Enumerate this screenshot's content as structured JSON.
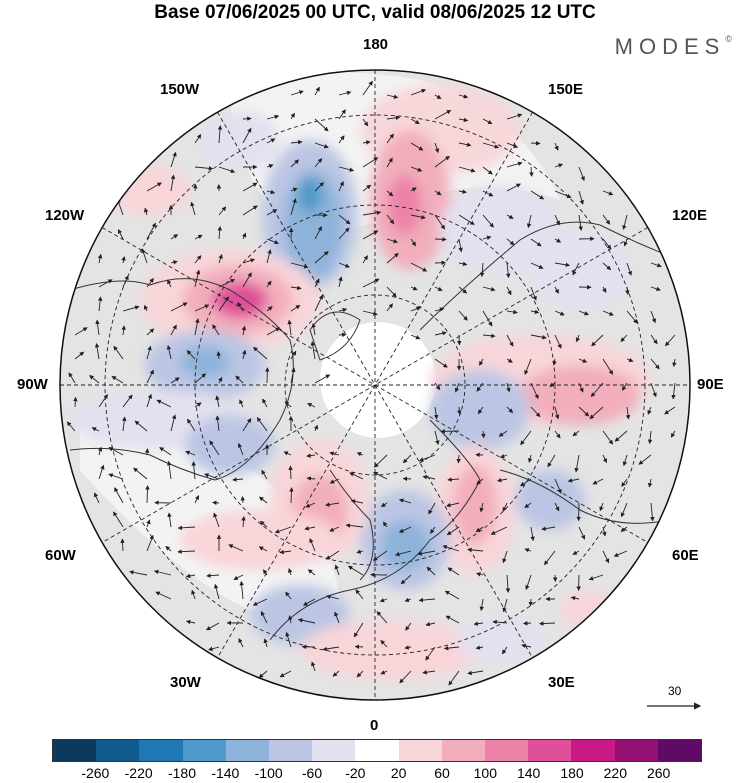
{
  "header": {
    "title": "Base 07/06/2025 00 UTC, valid 08/06/2025 12 UTC",
    "brand": "MODES",
    "brand_mark": "©"
  },
  "map": {
    "projection": "north-polar-stereographic",
    "longitude_labels": {
      "top": "180",
      "bottom": "0",
      "left": "90W",
      "right": "90E",
      "upper_left_1": "150W",
      "upper_left_2": "120W",
      "lower_left_1": "60W",
      "lower_left_2": "30W",
      "upper_right_1": "150E",
      "upper_right_2": "120E",
      "lower_right_1": "60E",
      "lower_right_2": "30E"
    },
    "reference_vector": "30"
  },
  "colorbar": {
    "colors": [
      "#0b3a5c",
      "#105a8d",
      "#1f78b4",
      "#4f9acb",
      "#8eb3da",
      "#bcc6e4",
      "#e2e1ef",
      "#ffffff",
      "#f8d5d9",
      "#f2aebc",
      "#ec82a8",
      "#e0509a",
      "#c81a85",
      "#951073",
      "#5e0a66"
    ],
    "ticks": [
      "-260",
      "-220",
      "-180",
      "-140",
      "-100",
      "-60",
      "-20",
      "20",
      "60",
      "100",
      "140",
      "180",
      "220",
      "260"
    ]
  }
}
